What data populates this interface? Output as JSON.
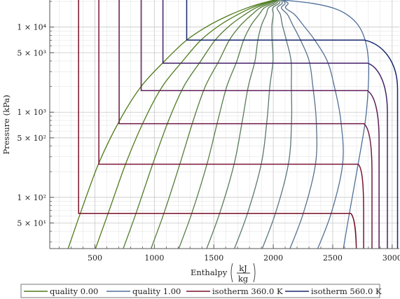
{
  "chart_data": {
    "type": "line",
    "xlabel": "Enthalpy",
    "xlabel_unit_num": "kJ",
    "xlabel_unit_den": "kg",
    "ylabel": "Pressure (kPa)",
    "y_scale": "log",
    "xlim": [
      120,
      3060
    ],
    "ylim": [
      25,
      20800
    ],
    "x_ticks": [
      500,
      1000,
      1500,
      2000,
      2500,
      3000
    ],
    "x_tick_labels": [
      "500",
      "1000",
      "1500",
      "2000",
      "2500",
      "3000"
    ],
    "y_ticks": [
      50,
      100,
      500,
      1000,
      5000,
      10000
    ],
    "y_tick_labels": [
      "5 × 10¹",
      "1 × 10²",
      "5 × 10²",
      "1 × 10³",
      "5 × 10³",
      "1 × 10⁴"
    ],
    "grid": true,
    "legend_position": "bottom",
    "colors": {
      "quality_low": "#4f7a1a",
      "quality_high": "#4f6f9a",
      "isotherm_low": "#7a1028",
      "isotherm_high": "#16266e",
      "grid": "#c8c8c8",
      "axis": "#555555"
    },
    "legend": [
      {
        "label": "quality 0.00",
        "color": "#4f7a1a"
      },
      {
        "label": "quality 1.00",
        "color": "#4f6f9a"
      },
      {
        "label": "isotherm 360.0 K",
        "color": "#7a1028"
      },
      {
        "label": "isotherm 560.0 K",
        "color": "#16266e"
      }
    ],
    "critical_point": {
      "h": 2084,
      "p": 22064
    },
    "quality_lines": [
      {
        "q": 0.0,
        "color": "#4f7a1a",
        "points": [
          [
            251,
            20
          ],
          [
            377,
            64.7
          ],
          [
            532,
            250
          ],
          [
            708,
            800
          ],
          [
            888,
            2000
          ],
          [
            1087,
            4000
          ],
          [
            1270,
            7000
          ],
          [
            1461,
            10500
          ],
          [
            1640,
            14000
          ],
          [
            1780,
            16800
          ],
          [
            1900,
            19000
          ],
          [
            2010,
            20800
          ]
        ]
      },
      {
        "q": 0.1,
        "color": "#4f7a1a",
        "points": [
          [
            480,
            20
          ],
          [
            611,
            64.7
          ],
          [
            760,
            250
          ],
          [
            914,
            800
          ],
          [
            1067,
            2000
          ],
          [
            1239,
            4000
          ],
          [
            1390,
            7000
          ],
          [
            1549,
            10500
          ],
          [
            1700,
            14000
          ],
          [
            1816,
            16800
          ],
          [
            1925,
            19000
          ],
          [
            2018,
            20800
          ]
        ]
      },
      {
        "q": 0.2,
        "color": "#4f7b2a",
        "points": [
          [
            713,
            20
          ],
          [
            845,
            64.7
          ],
          [
            988,
            250
          ],
          [
            1120,
            800
          ],
          [
            1247,
            2000
          ],
          [
            1391,
            4000
          ],
          [
            1510,
            7000
          ],
          [
            1637,
            10500
          ],
          [
            1760,
            14000
          ],
          [
            1852,
            16800
          ],
          [
            1950,
            19000
          ],
          [
            2026,
            20800
          ]
        ]
      },
      {
        "q": 0.3,
        "color": "#557c3a",
        "points": [
          [
            946,
            20
          ],
          [
            1080,
            64.7
          ],
          [
            1216,
            250
          ],
          [
            1327,
            800
          ],
          [
            1428,
            2000
          ],
          [
            1543,
            4000
          ],
          [
            1630,
            7000
          ],
          [
            1725,
            10500
          ],
          [
            1820,
            14000
          ],
          [
            1888,
            16800
          ],
          [
            1975,
            19000
          ],
          [
            2034,
            20800
          ]
        ]
      },
      {
        "q": 0.4,
        "color": "#587d4a",
        "points": [
          [
            1179,
            20
          ],
          [
            1314,
            64.7
          ],
          [
            1444,
            250
          ],
          [
            1534,
            800
          ],
          [
            1609,
            2000
          ],
          [
            1694,
            4000
          ],
          [
            1750,
            7000
          ],
          [
            1813,
            10500
          ],
          [
            1880,
            14000
          ],
          [
            1924,
            16800
          ],
          [
            2000,
            19000
          ],
          [
            2042,
            20800
          ]
        ]
      },
      {
        "q": 0.5,
        "color": "#5a7b5c",
        "points": [
          [
            1413,
            20
          ],
          [
            1549,
            64.7
          ],
          [
            1672,
            250
          ],
          [
            1740,
            800
          ],
          [
            1790,
            2000
          ],
          [
            1846,
            4000
          ],
          [
            1870,
            7000
          ],
          [
            1901,
            10500
          ],
          [
            1940,
            14000
          ],
          [
            1960,
            16800
          ],
          [
            2025,
            19000
          ],
          [
            2050,
            20800
          ]
        ]
      },
      {
        "q": 0.6,
        "color": "#5a786c",
        "points": [
          [
            1646,
            20
          ],
          [
            1783,
            64.7
          ],
          [
            1900,
            250
          ],
          [
            1947,
            800
          ],
          [
            1971,
            2000
          ],
          [
            1998,
            4000
          ],
          [
            1990,
            7000
          ],
          [
            1989,
            10500
          ],
          [
            2000,
            14000
          ],
          [
            1996,
            16800
          ],
          [
            2050,
            19000
          ],
          [
            2058,
            20800
          ]
        ]
      },
      {
        "q": 0.7,
        "color": "#59757c",
        "points": [
          [
            1879,
            20
          ],
          [
            2018,
            64.7
          ],
          [
            2128,
            250
          ],
          [
            2154,
            800
          ],
          [
            2152,
            2000
          ],
          [
            2150,
            4000
          ],
          [
            2110,
            7000
          ],
          [
            2077,
            10500
          ],
          [
            2060,
            14000
          ],
          [
            2032,
            16800
          ],
          [
            2075,
            19000
          ],
          [
            2066,
            20800
          ]
        ]
      },
      {
        "q": 0.8,
        "color": "#57728a",
        "points": [
          [
            2112,
            20
          ],
          [
            2252,
            64.7
          ],
          [
            2356,
            250
          ],
          [
            2361,
            800
          ],
          [
            2333,
            2000
          ],
          [
            2302,
            4000
          ],
          [
            2230,
            7000
          ],
          [
            2165,
            10500
          ],
          [
            2120,
            14000
          ],
          [
            2068,
            16800
          ],
          [
            2100,
            19000
          ],
          [
            2074,
            20800
          ]
        ]
      },
      {
        "q": 0.9,
        "color": "#537096",
        "points": [
          [
            2345,
            20
          ],
          [
            2487,
            64.7
          ],
          [
            2584,
            250
          ],
          [
            2568,
            800
          ],
          [
            2514,
            2000
          ],
          [
            2454,
            4000
          ],
          [
            2350,
            7000
          ],
          [
            2253,
            10500
          ],
          [
            2180,
            14000
          ],
          [
            2104,
            16800
          ],
          [
            2125,
            19000
          ],
          [
            2082,
            20800
          ]
        ]
      },
      {
        "q": 1.0,
        "color": "#4f6f9a",
        "points": [
          [
            2578,
            20
          ],
          [
            2640,
            64.7
          ],
          [
            2715,
            250
          ],
          [
            2775,
            800
          ],
          [
            2799,
            2000
          ],
          [
            2801,
            4000
          ],
          [
            2773,
            7000
          ],
          [
            2715,
            10500
          ],
          [
            2620,
            14000
          ],
          [
            2500,
            16800
          ],
          [
            2330,
            19000
          ],
          [
            2084,
            20800
          ]
        ]
      }
    ],
    "isotherms": [
      {
        "T": 360,
        "color": "#7a1028",
        "p_sat": 64.7,
        "h_liq": 363,
        "h_vap": 2652,
        "h_sup_top": 2700
      },
      {
        "T": 400,
        "color": "#7a1535",
        "p_sat": 245,
        "h_liq": 533,
        "h_vap": 2715,
        "h_sup_top": 2760
      },
      {
        "T": 440,
        "color": "#701a45",
        "p_sat": 733,
        "h_liq": 704,
        "h_vap": 2762,
        "h_sup_top": 2830
      },
      {
        "T": 480,
        "color": "#5f1d58",
        "p_sat": 1792,
        "h_liq": 889,
        "h_vap": 2790,
        "h_sup_top": 2890
      },
      {
        "T": 520,
        "color": "#43216a",
        "p_sat": 3770,
        "h_liq": 1072,
        "h_vap": 2794,
        "h_sup_top": 2960
      },
      {
        "T": 560,
        "color": "#16266e",
        "p_sat": 7032,
        "h_liq": 1272,
        "h_vap": 2770,
        "h_sup_top": 3045
      }
    ]
  }
}
